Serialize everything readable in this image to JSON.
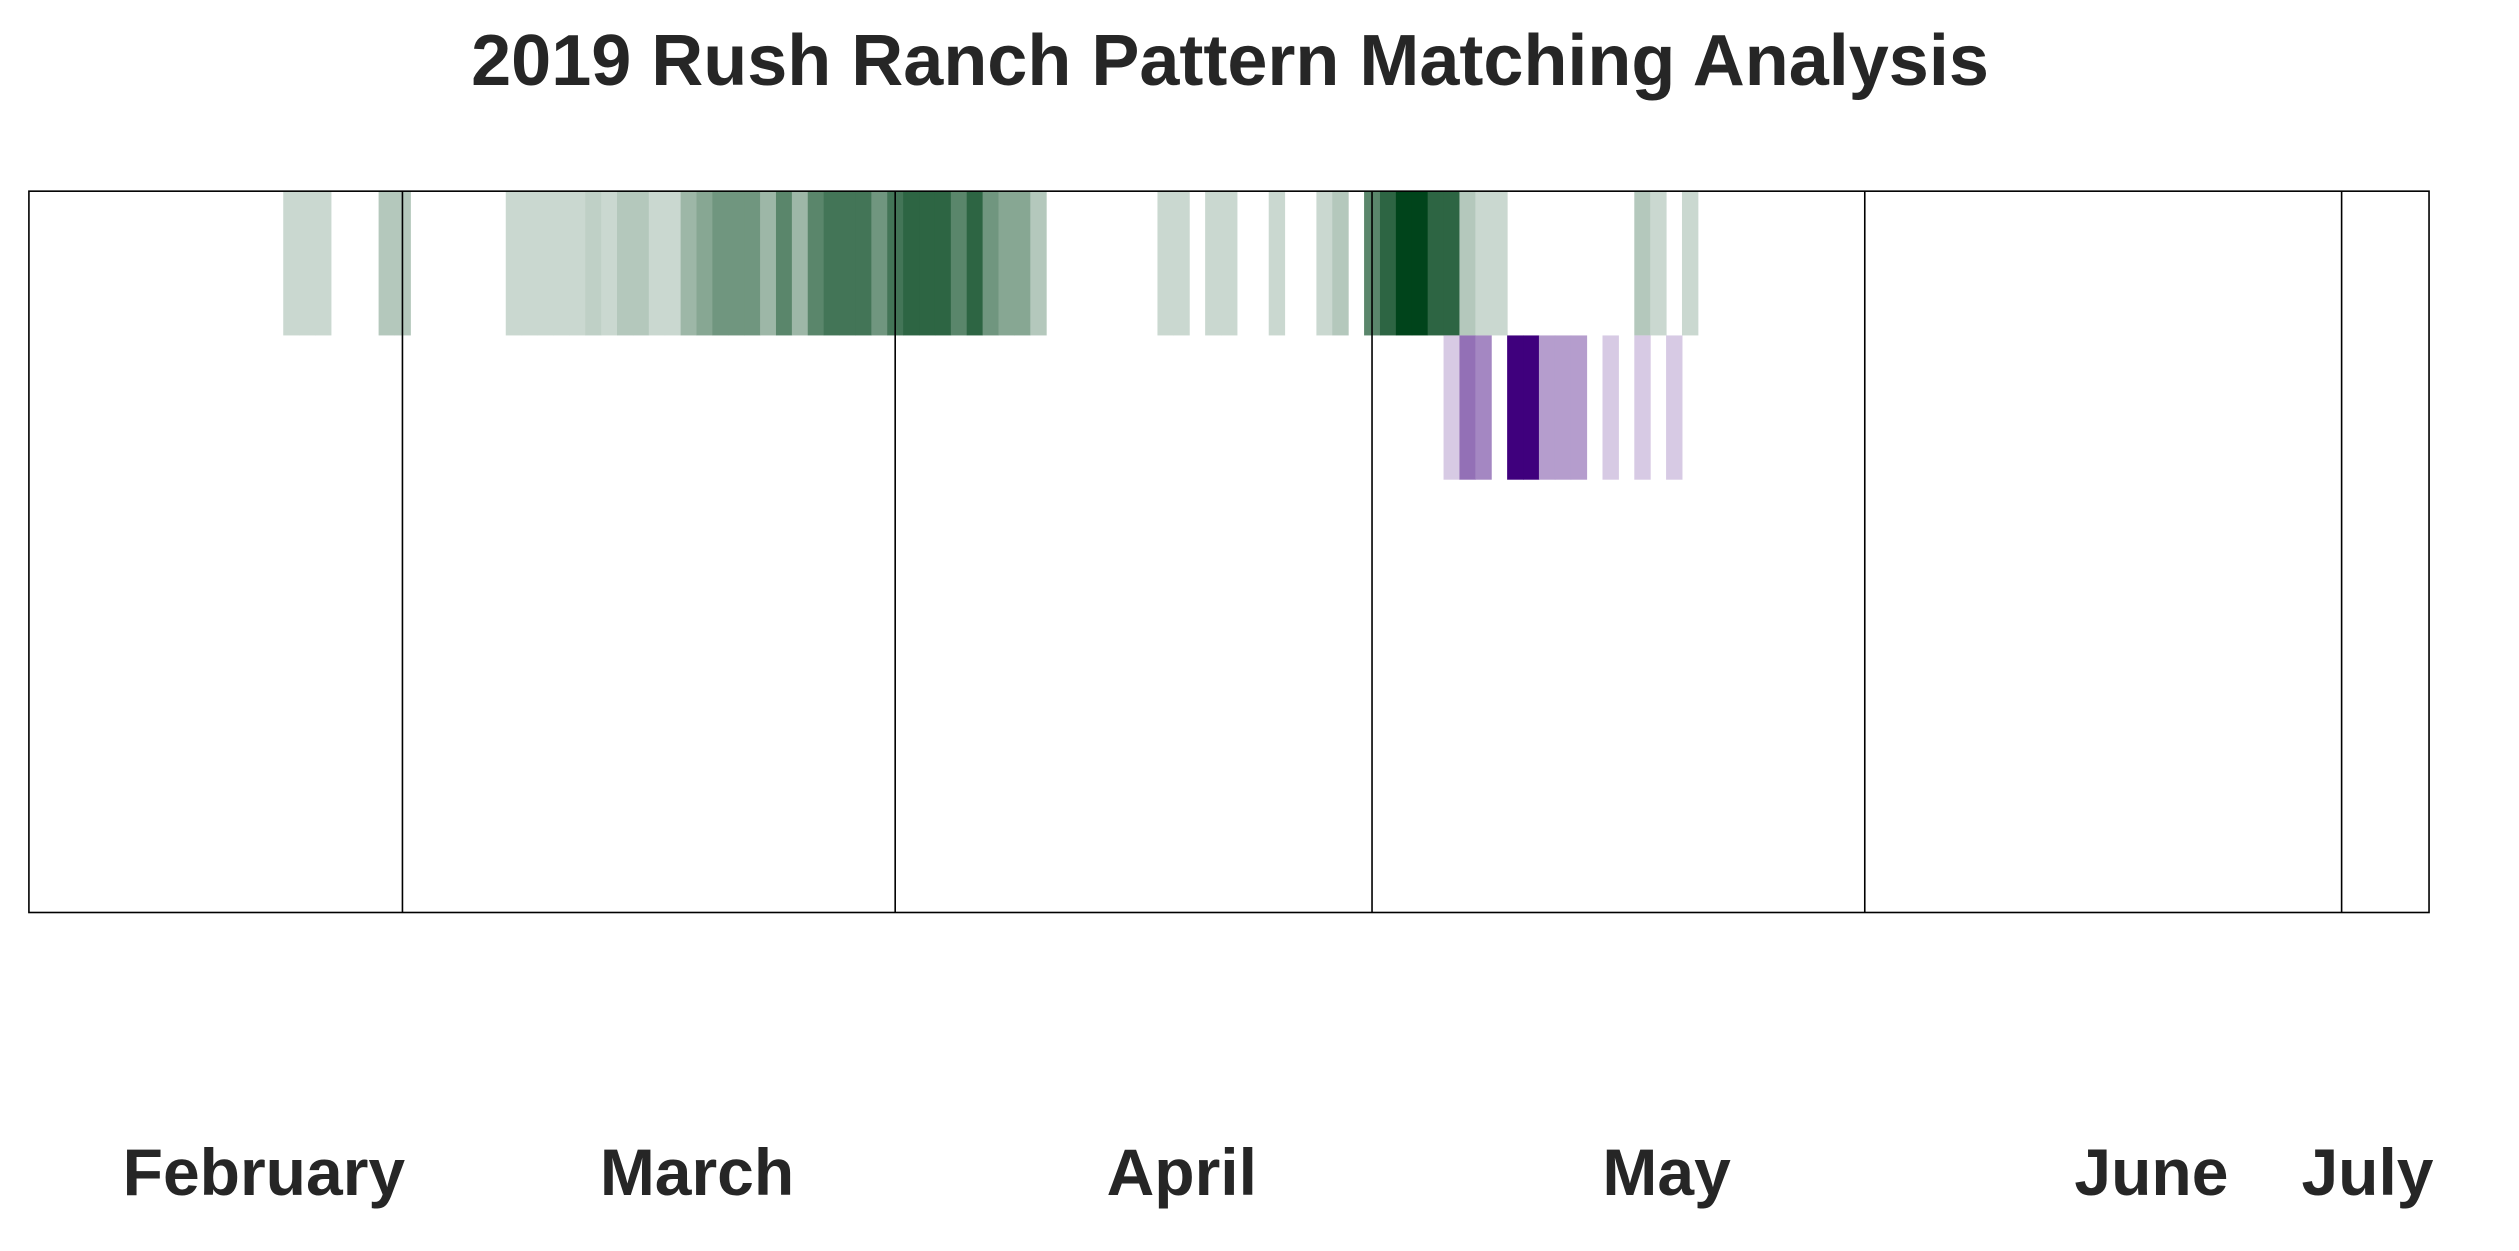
{
  "chart_data": {
    "type": "heatmap",
    "title": "2019 Rush Ranch Pattern Matching Analysis",
    "categories": [
      "February",
      "March",
      "April",
      "May",
      "June",
      "July"
    ],
    "xlim": [
      0,
      151
    ],
    "xticks": [
      23.5,
      54.5,
      84.5,
      115.5,
      145.5
    ],
    "vlim": [
      0,
      10
    ],
    "series": [
      {
        "color": "#00441b",
        "x": [
          16,
          17,
          18,
          22,
          23,
          30,
          31,
          32,
          33,
          34,
          35,
          36,
          37,
          38,
          39,
          40,
          41,
          42,
          43,
          44,
          45,
          46,
          47,
          48,
          49,
          50,
          51,
          52,
          53,
          54,
          55,
          56,
          57,
          58,
          59,
          60,
          61,
          62,
          63,
          71,
          72,
          74,
          75,
          78,
          81,
          82,
          84,
          85,
          86,
          87,
          88,
          89,
          90,
          91,
          92,
          101,
          102,
          104
        ],
        "values": [
          1,
          1,
          1,
          2,
          2,
          1,
          1,
          1,
          1,
          1,
          1.5,
          1,
          2,
          2,
          1,
          1,
          3,
          4,
          5,
          5,
          5,
          3,
          6,
          3,
          6,
          7,
          7,
          7,
          5,
          7,
          8,
          8,
          8,
          6,
          8,
          5,
          4,
          4,
          2,
          1,
          1,
          1,
          1,
          1,
          1,
          2,
          6,
          8,
          10,
          10,
          8,
          8,
          2,
          1,
          1,
          2,
          1,
          1
        ]
      },
      {
        "color": "#3f007d",
        "x": [
          89,
          90,
          91,
          93,
          94,
          95,
          96,
          97,
          99,
          101,
          103
        ],
        "values": [
          1,
          5,
          4,
          10,
          10,
          3,
          3,
          3,
          1,
          1,
          1
        ]
      }
    ]
  }
}
